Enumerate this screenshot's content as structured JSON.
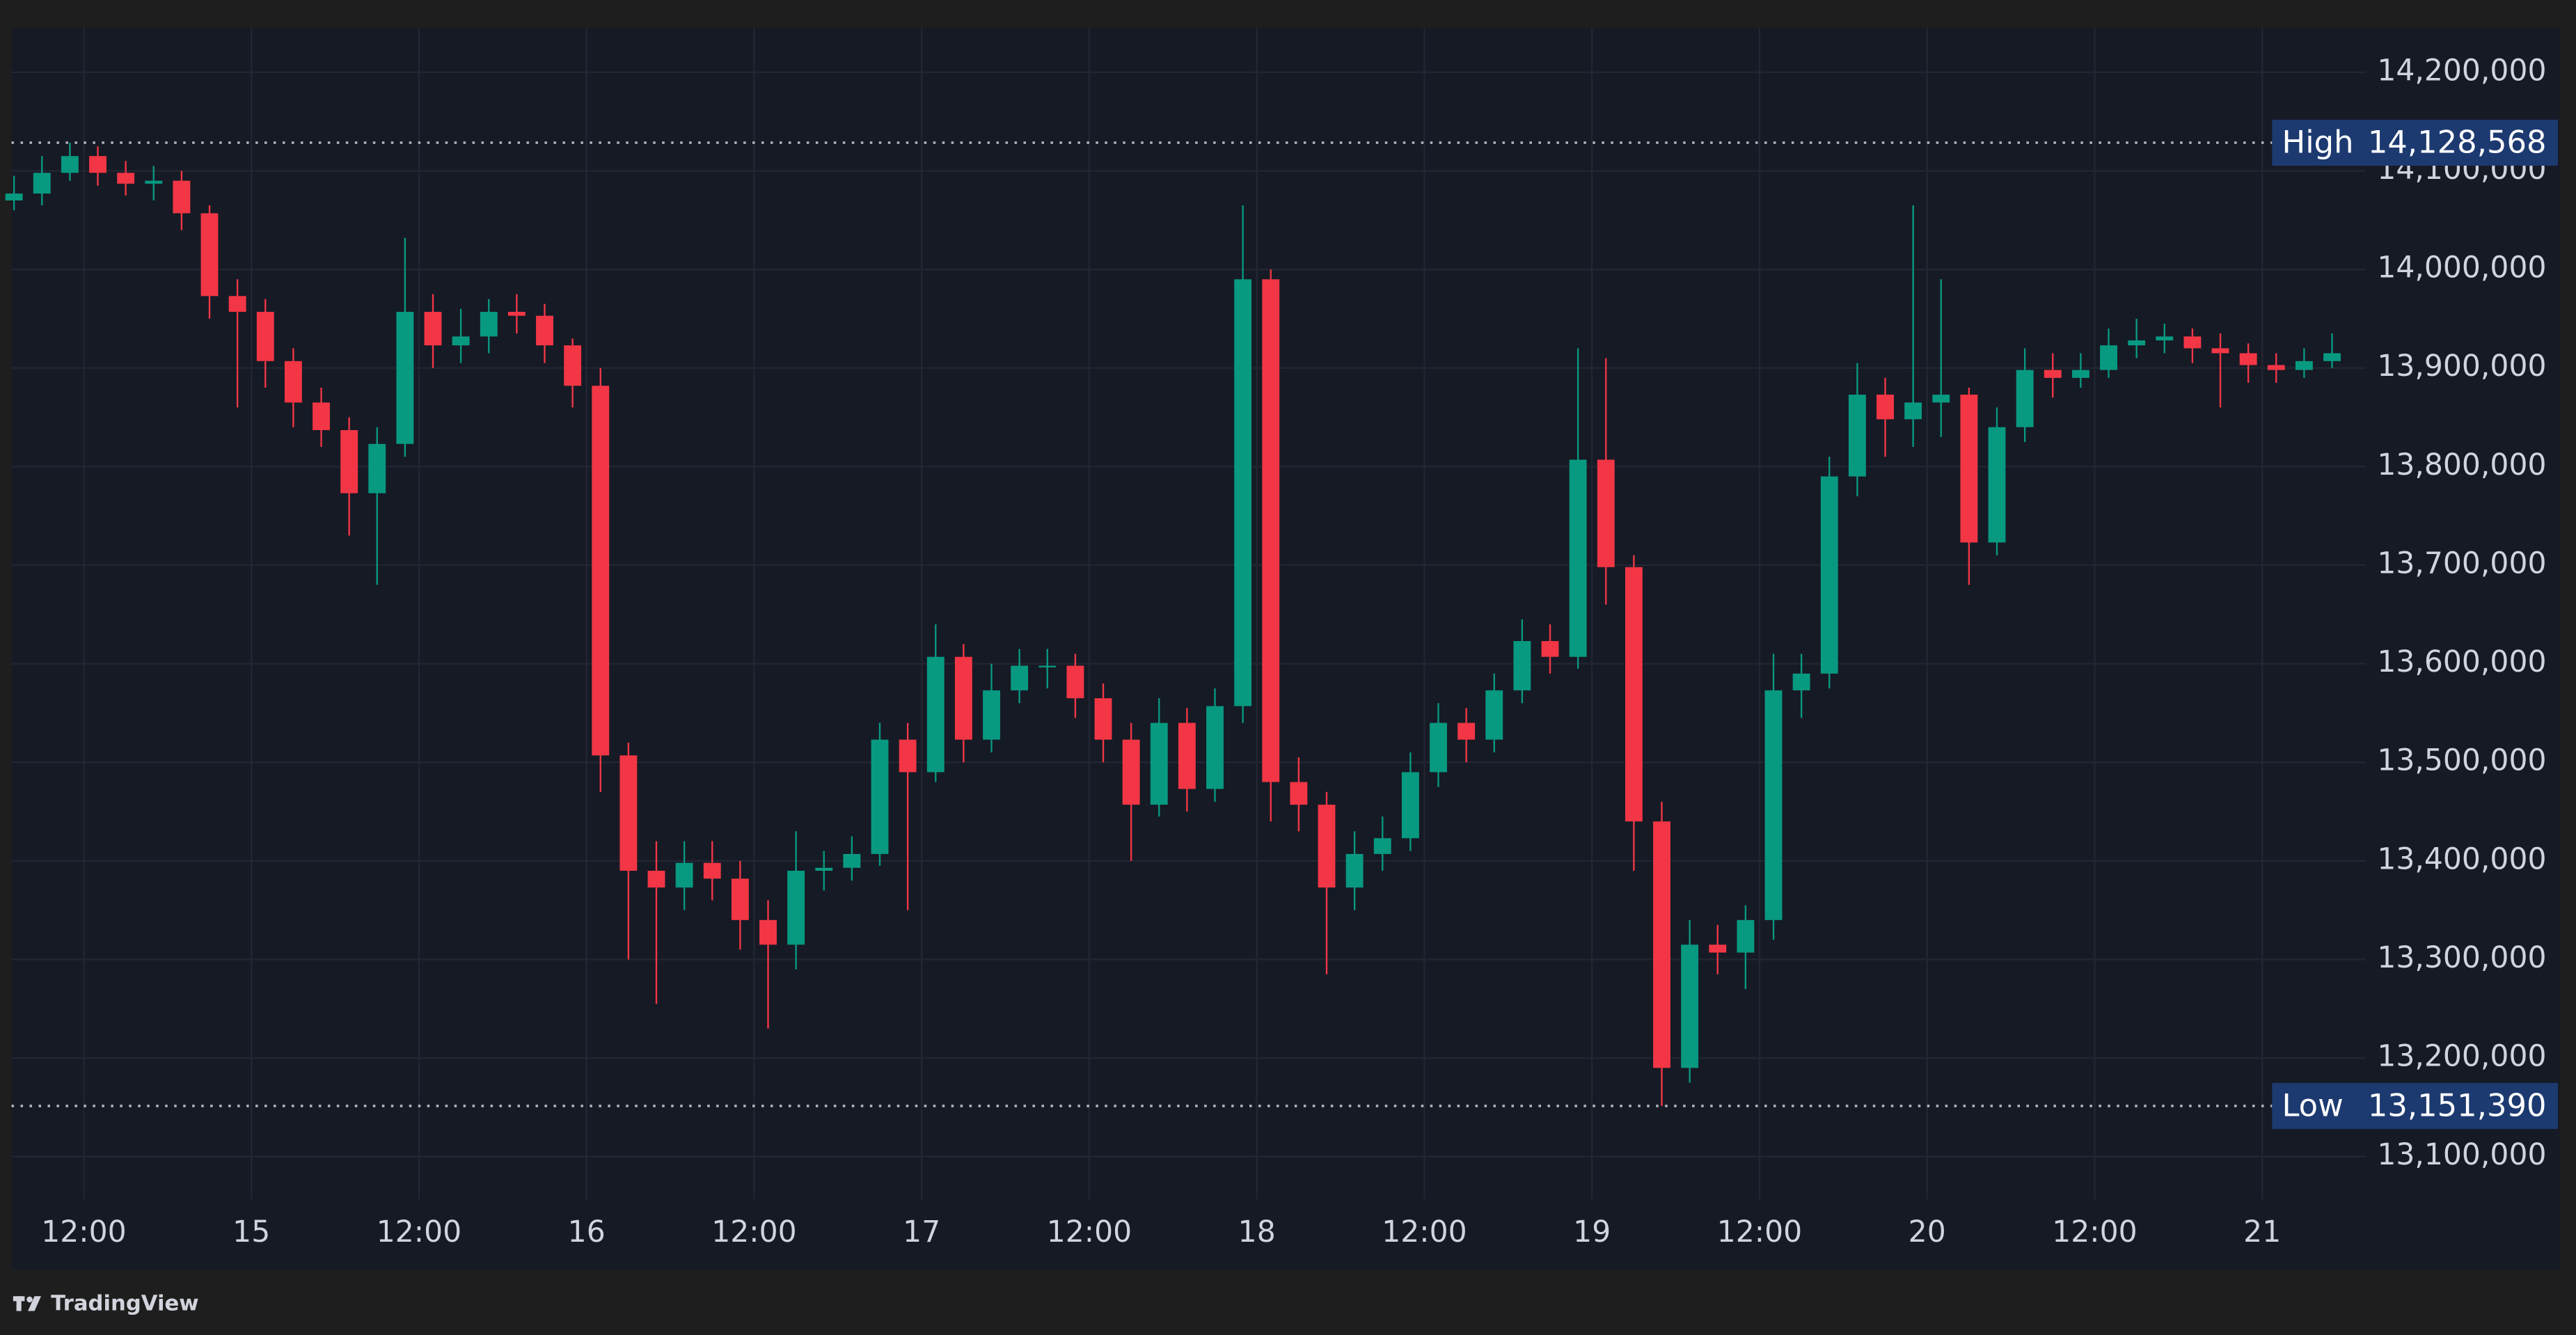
{
  "chart_data": {
    "type": "candlestick",
    "x": [
      7,
      9,
      11,
      13,
      15,
      17,
      19,
      21,
      23,
      25,
      27,
      29,
      31,
      33,
      35,
      37,
      39,
      41,
      43,
      45,
      47,
      49,
      51,
      53,
      55,
      57,
      59,
      61,
      63,
      65,
      67,
      69,
      71,
      73,
      75,
      77,
      79,
      81,
      83,
      85,
      87,
      89,
      91,
      93,
      95,
      97,
      99,
      101,
      103,
      105,
      107,
      109,
      111,
      113,
      115,
      117,
      119,
      121,
      123,
      125,
      127,
      129,
      131,
      133,
      135,
      137,
      139,
      141,
      143,
      145,
      147,
      149,
      151,
      153,
      155,
      157,
      159,
      161,
      163,
      165,
      167,
      169,
      171,
      173
    ],
    "open": [
      14070000,
      14077000,
      14098000,
      14115000,
      14098000,
      14087000,
      14090000,
      14057000,
      13973000,
      13957000,
      13907000,
      13865000,
      13837000,
      13773000,
      13823000,
      13957000,
      13923000,
      13932000,
      13957000,
      13953000,
      13923000,
      13882000,
      13507000,
      13390000,
      13373000,
      13398000,
      13382000,
      13340000,
      13315000,
      13390000,
      13393000,
      13407000,
      13523000,
      13490000,
      13607000,
      13523000,
      13573000,
      13598000,
      13598000,
      13565000,
      13523000,
      13457000,
      13540000,
      13473000,
      13557000,
      13990000,
      13480000,
      13457000,
      13373000,
      13407000,
      13423000,
      13490000,
      13540000,
      13523000,
      13573000,
      13623000,
      13607000,
      13807000,
      13698000,
      13440000,
      13190000,
      13315000,
      13307000,
      13340000,
      13573000,
      13590000,
      13790000,
      13873000,
      13848000,
      13865000,
      13873000,
      13723000,
      13840000,
      13898000,
      13890000,
      13898000,
      13923000,
      13928000,
      13932000,
      13920000,
      13915000,
      13903000,
      13898000,
      13907000
    ],
    "high": [
      14095000,
      14115000,
      14128568,
      14125000,
      14110000,
      14105000,
      14100000,
      14065000,
      13990000,
      13970000,
      13920000,
      13880000,
      13850000,
      13840000,
      14032000,
      13975000,
      13960000,
      13970000,
      13975000,
      13965000,
      13930000,
      13900000,
      13520000,
      13420000,
      13420000,
      13420000,
      13400000,
      13360000,
      13430000,
      13410000,
      13425000,
      13540000,
      13540000,
      13640000,
      13620000,
      13600000,
      13615000,
      13615000,
      13610000,
      13580000,
      13540000,
      13565000,
      13555000,
      13575000,
      14065000,
      14000000,
      13505000,
      13470000,
      13430000,
      13445000,
      13510000,
      13560000,
      13555000,
      13590000,
      13645000,
      13640000,
      13920000,
      13910000,
      13710000,
      13460000,
      13340000,
      13335000,
      13355000,
      13610000,
      13610000,
      13810000,
      13905000,
      13890000,
      14065000,
      13990000,
      13880000,
      13860000,
      13920000,
      13915000,
      13915000,
      13940000,
      13950000,
      13945000,
      13940000,
      13935000,
      13925000,
      13915000,
      13920000,
      13935000
    ],
    "low": [
      14060000,
      14065000,
      14090000,
      14085000,
      14075000,
      14070000,
      14040000,
      13950000,
      13860000,
      13880000,
      13840000,
      13820000,
      13730000,
      13680000,
      13810000,
      13900000,
      13905000,
      13915000,
      13935000,
      13905000,
      13860000,
      13470000,
      13300000,
      13255000,
      13350000,
      13360000,
      13310000,
      13230000,
      13290000,
      13370000,
      13380000,
      13395000,
      13350000,
      13480000,
      13500000,
      13510000,
      13560000,
      13575000,
      13545000,
      13500000,
      13400000,
      13445000,
      13450000,
      13460000,
      13540000,
      13440000,
      13430000,
      13285000,
      13350000,
      13390000,
      13410000,
      13475000,
      13500000,
      13510000,
      13560000,
      13590000,
      13595000,
      13660000,
      13390000,
      13151390,
      13175000,
      13285000,
      13270000,
      13320000,
      13545000,
      13575000,
      13770000,
      13810000,
      13820000,
      13830000,
      13680000,
      13710000,
      13825000,
      13870000,
      13880000,
      13890000,
      13910000,
      13915000,
      13905000,
      13860000,
      13885000,
      13885000,
      13890000,
      13900000
    ],
    "close": [
      14077000,
      14098000,
      14115000,
      14098000,
      14087000,
      14090000,
      14057000,
      13973000,
      13957000,
      13907000,
      13865000,
      13837000,
      13773000,
      13823000,
      13957000,
      13923000,
      13932000,
      13957000,
      13953000,
      13923000,
      13882000,
      13507000,
      13390000,
      13373000,
      13398000,
      13382000,
      13340000,
      13315000,
      13390000,
      13393000,
      13407000,
      13523000,
      13490000,
      13607000,
      13523000,
      13573000,
      13598000,
      13598000,
      13565000,
      13523000,
      13457000,
      13540000,
      13473000,
      13557000,
      13990000,
      13480000,
      13457000,
      13373000,
      13407000,
      13423000,
      13490000,
      13540000,
      13523000,
      13573000,
      13623000,
      13607000,
      13807000,
      13698000,
      13440000,
      13190000,
      13315000,
      13307000,
      13340000,
      13573000,
      13590000,
      13790000,
      13873000,
      13848000,
      13865000,
      13873000,
      13723000,
      13840000,
      13898000,
      13890000,
      13898000,
      13923000,
      13928000,
      13932000,
      13920000,
      13915000,
      13903000,
      13898000,
      13907000,
      13915000
    ],
    "up_color": "#089981",
    "down_color": "#f23645",
    "xlim": [
      6.82,
      175.41
    ],
    "xticks": [
      {
        "value": 12,
        "label": "12:00"
      },
      {
        "value": 24,
        "label": "15"
      },
      {
        "value": 36,
        "label": "12:00"
      },
      {
        "value": 48,
        "label": "16"
      },
      {
        "value": 60,
        "label": "12:00"
      },
      {
        "value": 72,
        "label": "17"
      },
      {
        "value": 84,
        "label": "12:00"
      },
      {
        "value": 96,
        "label": "18"
      },
      {
        "value": 108,
        "label": "12:00"
      },
      {
        "value": 120,
        "label": "19"
      },
      {
        "value": 132,
        "label": "12:00"
      },
      {
        "value": 144,
        "label": "20"
      },
      {
        "value": 156,
        "label": "12:00"
      },
      {
        "value": 168,
        "label": "21"
      }
    ],
    "ylim": [
      13056700,
      14245000
    ],
    "yticks": [
      {
        "value": 13100000,
        "label": "13,100,000"
      },
      {
        "value": 13200000,
        "label": "13,200,000"
      },
      {
        "value": 13300000,
        "label": "13,300,000"
      },
      {
        "value": 13400000,
        "label": "13,400,000"
      },
      {
        "value": 13500000,
        "label": "13,500,000"
      },
      {
        "value": 13600000,
        "label": "13,600,000"
      },
      {
        "value": 13700000,
        "label": "13,700,000"
      },
      {
        "value": 13800000,
        "label": "13,800,000"
      },
      {
        "value": 13900000,
        "label": "13,900,000"
      },
      {
        "value": 14000000,
        "label": "14,000,000"
      },
      {
        "value": 14100000,
        "label": "14,100,000"
      },
      {
        "value": 14200000,
        "label": "14,200,000"
      }
    ],
    "grid": true,
    "high_line": {
      "label": "High",
      "value": 14128568,
      "value_label": "14,128,568"
    },
    "low_line": {
      "label": "Low",
      "value": 13151390,
      "value_label": "13,151,390"
    }
  },
  "footer": {
    "brand": "TradingView"
  }
}
